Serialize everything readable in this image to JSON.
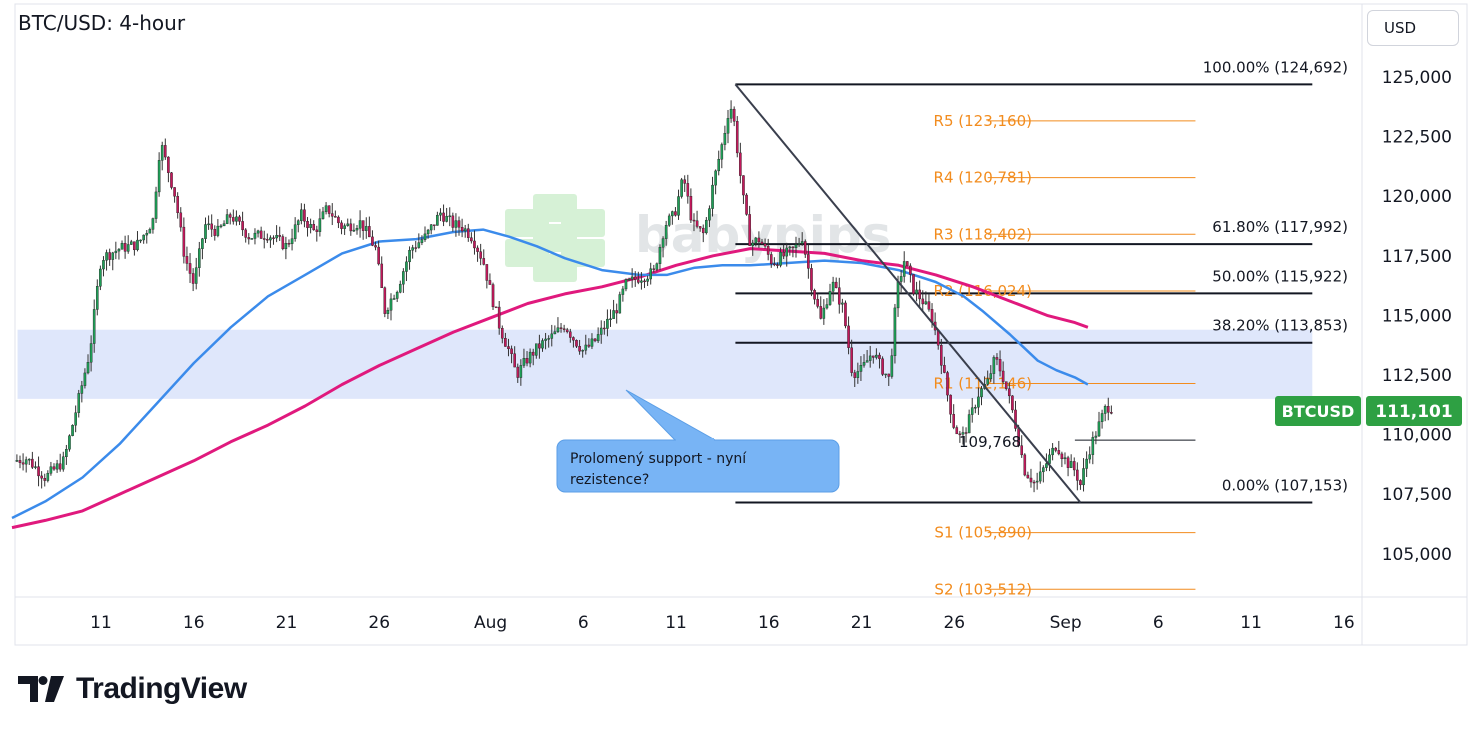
{
  "header": {
    "title": "BTC/USD: 4-hour",
    "currency_button": "USD"
  },
  "brand": {
    "name": "TradingView",
    "logo_text": "TV"
  },
  "watermark": "babypips",
  "price_tag": {
    "symbol": "BTCUSD",
    "value": "111,101",
    "color": "#2ea043"
  },
  "callout": {
    "line1": "Prolomený support - nyní",
    "line2": "rezistence?"
  },
  "colors": {
    "sma_fast": "#3b8beb",
    "sma_slow": "#e0197d",
    "pivot": "#f28c1e",
    "zone": "#dbe4fb",
    "fib": "#131722",
    "callout_fill": "#78b4f5"
  },
  "chart_data": {
    "type": "candlestick",
    "instrument": "BTC/USD",
    "timeframe": "4-hour",
    "ylim": [
      103000,
      126500
    ],
    "y_ticks": [
      {
        "value": 125000,
        "label": "125,000"
      },
      {
        "value": 122500,
        "label": "122,500"
      },
      {
        "value": 120000,
        "label": "120,000"
      },
      {
        "value": 117500,
        "label": "117,500"
      },
      {
        "value": 115000,
        "label": "115,000"
      },
      {
        "value": 112500,
        "label": "112,500"
      },
      {
        "value": 110000,
        "label": "110,000"
      },
      {
        "value": 107500,
        "label": "107,500"
      },
      {
        "value": 105000,
        "label": "105,000"
      }
    ],
    "x_ticks": [
      {
        "day": 11,
        "label": "11"
      },
      {
        "day": 16,
        "label": "16"
      },
      {
        "day": 21,
        "label": "21"
      },
      {
        "day": 26,
        "label": "26"
      },
      {
        "day": 32,
        "label": "Aug"
      },
      {
        "day": 37,
        "label": "6"
      },
      {
        "day": 42,
        "label": "11"
      },
      {
        "day": 47,
        "label": "16"
      },
      {
        "day": 52,
        "label": "21"
      },
      {
        "day": 57,
        "label": "26"
      },
      {
        "day": 63,
        "label": "Sep"
      },
      {
        "day": 68,
        "label": "6"
      },
      {
        "day": 73,
        "label": "11"
      },
      {
        "day": 78,
        "label": "16"
      }
    ],
    "x_range_days": [
      6.2,
      79.3
    ],
    "price_path": [
      [
        6.3,
        108900
      ],
      [
        7.0,
        109000
      ],
      [
        8.0,
        108200
      ],
      [
        9.0,
        108900
      ],
      [
        9.8,
        111500
      ],
      [
        10.4,
        113500
      ],
      [
        11.0,
        117400
      ],
      [
        12.0,
        117800
      ],
      [
        13.0,
        118000
      ],
      [
        13.8,
        119000
      ],
      [
        14.2,
        122300
      ],
      [
        15.0,
        120000
      ],
      [
        15.5,
        117500
      ],
      [
        16.0,
        116300
      ],
      [
        16.6,
        118800
      ],
      [
        17.3,
        118500
      ],
      [
        18.0,
        119200
      ],
      [
        19.0,
        118300
      ],
      [
        20.0,
        118400
      ],
      [
        21.0,
        117900
      ],
      [
        21.8,
        119200
      ],
      [
        22.5,
        118500
      ],
      [
        23.2,
        119500
      ],
      [
        24.0,
        118700
      ],
      [
        25.0,
        118900
      ],
      [
        25.8,
        117800
      ],
      [
        26.3,
        115200
      ],
      [
        27.0,
        116200
      ],
      [
        27.7,
        117800
      ],
      [
        28.5,
        118300
      ],
      [
        29.3,
        119300
      ],
      [
        30.0,
        118800
      ],
      [
        30.5,
        118700
      ],
      [
        31.0,
        118300
      ],
      [
        31.6,
        117300
      ],
      [
        32.0,
        116000
      ],
      [
        32.5,
        114500
      ],
      [
        33.0,
        113500
      ],
      [
        33.4,
        112500
      ],
      [
        34.0,
        113200
      ],
      [
        34.6,
        113700
      ],
      [
        35.3,
        114100
      ],
      [
        36.0,
        114600
      ],
      [
        36.5,
        114000
      ],
      [
        37.0,
        113500
      ],
      [
        37.6,
        113900
      ],
      [
        38.2,
        114600
      ],
      [
        38.8,
        115300
      ],
      [
        39.3,
        116300
      ],
      [
        40.0,
        116600
      ],
      [
        40.8,
        116800
      ],
      [
        41.4,
        118800
      ],
      [
        41.9,
        119200
      ],
      [
        42.4,
        120800
      ],
      [
        42.9,
        118800
      ],
      [
        43.5,
        118400
      ],
      [
        44.0,
        120500
      ],
      [
        44.6,
        122600
      ],
      [
        44.9,
        123900
      ],
      [
        45.1,
        123300
      ],
      [
        45.6,
        120000
      ],
      [
        46.0,
        118000
      ],
      [
        46.5,
        118200
      ],
      [
        47.2,
        117200
      ],
      [
        47.8,
        117500
      ],
      [
        48.4,
        117800
      ],
      [
        48.8,
        118300
      ],
      [
        49.3,
        116300
      ],
      [
        49.8,
        114800
      ],
      [
        50.4,
        116400
      ],
      [
        51.0,
        115300
      ],
      [
        51.5,
        112600
      ],
      [
        52.0,
        112700
      ],
      [
        52.6,
        113500
      ],
      [
        53.0,
        112900
      ],
      [
        53.5,
        112300
      ],
      [
        53.9,
        116000
      ],
      [
        54.3,
        117300
      ],
      [
        54.8,
        116100
      ],
      [
        55.3,
        115600
      ],
      [
        55.8,
        114900
      ],
      [
        56.2,
        113600
      ],
      [
        56.6,
        111800
      ],
      [
        57.0,
        110300
      ],
      [
        57.4,
        109800
      ],
      [
        57.9,
        110800
      ],
      [
        58.3,
        111700
      ],
      [
        58.8,
        112200
      ],
      [
        59.2,
        113200
      ],
      [
        59.6,
        112500
      ],
      [
        60.2,
        110800
      ],
      [
        60.8,
        108500
      ],
      [
        61.4,
        107900
      ],
      [
        61.9,
        108700
      ],
      [
        62.5,
        109600
      ],
      [
        63.0,
        108900
      ],
      [
        63.5,
        108500
      ],
      [
        63.8,
        107900
      ],
      [
        64.2,
        109200
      ],
      [
        64.7,
        110200
      ],
      [
        65.2,
        111200
      ],
      [
        65.6,
        111101
      ]
    ],
    "sma_fast": [
      [
        6.2,
        106500
      ],
      [
        8.0,
        107200
      ],
      [
        10.0,
        108200
      ],
      [
        12.0,
        109600
      ],
      [
        14.0,
        111300
      ],
      [
        16.0,
        113000
      ],
      [
        18.0,
        114500
      ],
      [
        20.0,
        115800
      ],
      [
        22.0,
        116700
      ],
      [
        24.0,
        117600
      ],
      [
        26.0,
        118100
      ],
      [
        28.0,
        118200
      ],
      [
        30.0,
        118500
      ],
      [
        31.6,
        118600
      ],
      [
        33.0,
        118300
      ],
      [
        34.5,
        117900
      ],
      [
        36.0,
        117400
      ],
      [
        38.0,
        116900
      ],
      [
        40.0,
        116700
      ],
      [
        41.5,
        116700
      ],
      [
        43.0,
        117000
      ],
      [
        44.5,
        117100
      ],
      [
        46.0,
        117100
      ],
      [
        48.0,
        117200
      ],
      [
        50.0,
        117300
      ],
      [
        52.0,
        117200
      ],
      [
        54.0,
        116900
      ],
      [
        56.0,
        116400
      ],
      [
        57.5,
        115800
      ],
      [
        58.5,
        115200
      ],
      [
        60.0,
        114200
      ],
      [
        61.5,
        113100
      ],
      [
        62.5,
        112700
      ],
      [
        63.5,
        112400
      ],
      [
        64.2,
        112100
      ]
    ],
    "sma_slow": [
      [
        6.2,
        106100
      ],
      [
        8.0,
        106400
      ],
      [
        10.0,
        106800
      ],
      [
        12.0,
        107500
      ],
      [
        14.0,
        108200
      ],
      [
        16.0,
        108900
      ],
      [
        18.0,
        109700
      ],
      [
        20.0,
        110400
      ],
      [
        22.0,
        111200
      ],
      [
        24.0,
        112100
      ],
      [
        26.0,
        112900
      ],
      [
        28.0,
        113600
      ],
      [
        30.0,
        114300
      ],
      [
        32.0,
        114900
      ],
      [
        34.0,
        115500
      ],
      [
        36.0,
        115900
      ],
      [
        38.0,
        116200
      ],
      [
        40.0,
        116600
      ],
      [
        42.0,
        117100
      ],
      [
        44.0,
        117500
      ],
      [
        46.0,
        117800
      ],
      [
        48.0,
        117700
      ],
      [
        50.0,
        117600
      ],
      [
        52.0,
        117300
      ],
      [
        54.0,
        117100
      ],
      [
        56.0,
        116700
      ],
      [
        58.0,
        116200
      ],
      [
        60.0,
        115600
      ],
      [
        62.0,
        115000
      ],
      [
        63.5,
        114700
      ],
      [
        64.2,
        114500
      ]
    ],
    "support_zone": {
      "y1": 111500,
      "y2": 114400,
      "x1": 6.5,
      "x2": 76.3
    },
    "fib_levels": [
      {
        "label": "100.00% (124,692)",
        "value": 124692
      },
      {
        "label": "61.80% (117,992)",
        "value": 117992
      },
      {
        "label": "50.00% (115,922)",
        "value": 115922
      },
      {
        "label": "38.20% (113,853)",
        "value": 113853
      },
      {
        "label": "0.00% (107,153)",
        "value": 107153
      }
    ],
    "fib_x_range": [
      45.2,
      76.3
    ],
    "pivot_levels": [
      {
        "label": "R5 (123,160)",
        "value": 123160
      },
      {
        "label": "R4 (120,781)",
        "value": 120781
      },
      {
        "label": "R3 (118,402)",
        "value": 118402
      },
      {
        "label": "R2 (116,024)",
        "value": 116024
      },
      {
        "label": "R1 (112,146)",
        "value": 112146
      },
      {
        "label": "S1 (105,890)",
        "value": 105890
      },
      {
        "label": "S2 (103,512)",
        "value": 103512
      }
    ],
    "pivot_line_x_range": [
      58.8,
      70.0
    ],
    "pivot_point": {
      "label": "109,768",
      "value": 109768
    },
    "pivot_point_x_range": [
      63.5,
      70.0
    ],
    "trendline": {
      "from": [
        45.2,
        124692
      ],
      "to": [
        63.8,
        107153
      ]
    }
  }
}
